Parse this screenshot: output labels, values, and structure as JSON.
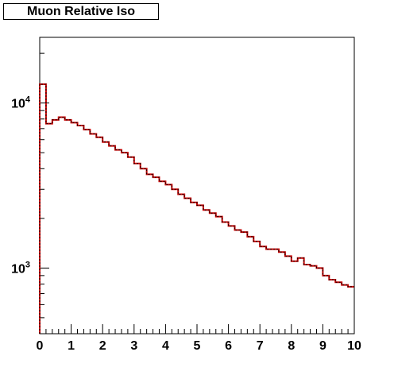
{
  "chart_data": {
    "type": "line",
    "title": "Muon Relative Iso",
    "xlabel": "",
    "ylabel": "",
    "x_scale": "linear",
    "y_scale": "log",
    "xlim": [
      0,
      10
    ],
    "ylim": [
      400,
      25000
    ],
    "x_ticks": [
      "0",
      "1",
      "2",
      "3",
      "4",
      "5",
      "6",
      "7",
      "8",
      "9",
      "10"
    ],
    "y_ticks": [
      {
        "value": 1000,
        "label": "10",
        "exponent": "3"
      },
      {
        "value": 10000,
        "label": "10",
        "exponent": "4"
      }
    ],
    "bin_edges": [
      0,
      0.2,
      0.4,
      0.6,
      0.8,
      1.0,
      1.2,
      1.4,
      1.6,
      1.8,
      2.0,
      2.2,
      2.4,
      2.6,
      2.8,
      3.0,
      3.2,
      3.4,
      3.6,
      3.8,
      4.0,
      4.2,
      4.4,
      4.6,
      4.8,
      5.0,
      5.2,
      5.4,
      5.6,
      5.8,
      6.0,
      6.2,
      6.4,
      6.6,
      6.8,
      7.0,
      7.2,
      7.4,
      7.6,
      7.8,
      8.0,
      8.2,
      8.4,
      8.6,
      8.8,
      9.0,
      9.2,
      9.4,
      9.6,
      9.8,
      10.0
    ],
    "series": [
      {
        "color": "#cc0000",
        "style": "solid",
        "values": [
          13000,
          7500,
          7900,
          8200,
          7900,
          7600,
          7300,
          6900,
          6500,
          6200,
          5800,
          5500,
          5200,
          5000,
          4700,
          4300,
          4000,
          3700,
          3550,
          3350,
          3200,
          3000,
          2800,
          2650,
          2500,
          2400,
          2250,
          2150,
          2050,
          1900,
          1800,
          1700,
          1650,
          1550,
          1450,
          1350,
          1300,
          1300,
          1250,
          1180,
          1100,
          1150,
          1050,
          1030,
          1000,
          900,
          850,
          820,
          790,
          770
        ]
      },
      {
        "color": "#000000",
        "style": "dashed",
        "values": [
          13000,
          7500,
          7900,
          8200,
          7900,
          7600,
          7300,
          6900,
          6500,
          6200,
          5800,
          5500,
          5200,
          5000,
          4700,
          4300,
          4000,
          3700,
          3550,
          3350,
          3200,
          3000,
          2800,
          2650,
          2500,
          2400,
          2250,
          2150,
          2050,
          1900,
          1800,
          1700,
          1650,
          1550,
          1450,
          1350,
          1300,
          1300,
          1250,
          1180,
          1100,
          1150,
          1050,
          1030,
          1000,
          900,
          850,
          820,
          790,
          770
        ]
      }
    ],
    "grid": false,
    "legend": "none"
  }
}
